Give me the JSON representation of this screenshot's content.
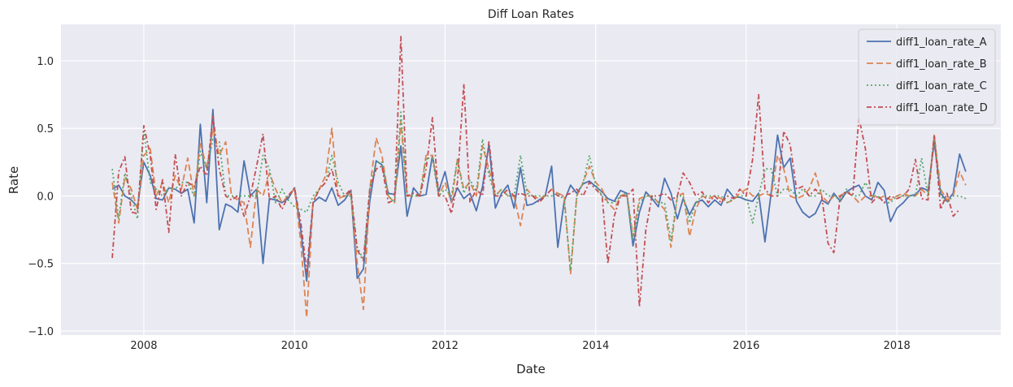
{
  "chart_data": {
    "type": "line",
    "title": "Diff Loan Rates",
    "xlabel": "Date",
    "ylabel": "Rate",
    "x_type": "date",
    "x_start": "2007-08",
    "x_step": "month",
    "xlim": [
      "2006-11-25",
      "2019-05-20"
    ],
    "ylim": [
      -1.03,
      1.27
    ],
    "x_ticks": [
      "2008",
      "2010",
      "2012",
      "2014",
      "2016",
      "2018"
    ],
    "x_tick_dates": [
      "2008-01-01",
      "2010-01-01",
      "2012-01-01",
      "2014-01-01",
      "2016-01-01",
      "2018-01-01"
    ],
    "y_ticks": [
      -1.0,
      -0.5,
      0.0,
      0.5,
      1.0
    ],
    "y_tick_labels": [
      "−1.0",
      "−0.5",
      "0.0",
      "0.5",
      "1.0"
    ],
    "grid": true,
    "legend_position": "top-right",
    "series": [
      {
        "name": "diff1_loan_rate_A",
        "color": "#4c72b0",
        "dash": "solid",
        "values": [
          0.05,
          0.08,
          0.0,
          -0.03,
          -0.08,
          0.25,
          0.15,
          -0.02,
          -0.03,
          0.06,
          0.05,
          0.02,
          0.05,
          -0.2,
          0.53,
          -0.05,
          0.64,
          -0.25,
          -0.06,
          -0.08,
          -0.12,
          0.26,
          0.0,
          0.05,
          -0.5,
          -0.02,
          -0.03,
          -0.05,
          -0.02,
          0.06,
          -0.26,
          -0.63,
          -0.05,
          -0.01,
          -0.04,
          0.06,
          -0.07,
          -0.03,
          0.04,
          -0.61,
          -0.54,
          -0.04,
          0.26,
          0.23,
          0.02,
          0.01,
          0.37,
          -0.15,
          0.06,
          0.0,
          0.01,
          0.3,
          0.03,
          0.18,
          -0.05,
          0.06,
          -0.02,
          0.02,
          -0.11,
          0.07,
          0.38,
          -0.09,
          0.02,
          0.08,
          -0.09,
          0.21,
          -0.07,
          -0.06,
          -0.03,
          0.0,
          0.22,
          -0.38,
          -0.04,
          0.08,
          0.02,
          0.09,
          0.11,
          0.07,
          0.03,
          -0.02,
          -0.04,
          0.04,
          0.02,
          -0.37,
          -0.12,
          0.03,
          -0.02,
          -0.08,
          0.13,
          0.02,
          -0.17,
          -0.02,
          -0.14,
          -0.05,
          -0.03,
          -0.08,
          -0.03,
          -0.07,
          0.05,
          -0.01,
          -0.01,
          -0.03,
          -0.04,
          0.02,
          -0.34,
          0.02,
          0.45,
          0.21,
          0.28,
          -0.04,
          -0.12,
          -0.16,
          -0.13,
          -0.03,
          -0.06,
          0.02,
          -0.04,
          0.03,
          0.06,
          0.08,
          0.0,
          -0.03,
          0.1,
          0.04,
          -0.19,
          -0.09,
          -0.05,
          0.0,
          0.01,
          0.06,
          0.04,
          0.4,
          0.02,
          -0.04,
          0.02,
          0.31,
          0.18
        ]
      },
      {
        "name": "diff1_loan_rate_B",
        "color": "#dd8452",
        "dash": "8,4",
        "values": [
          0.1,
          -0.2,
          0.14,
          0.05,
          -0.1,
          0.3,
          0.35,
          0.0,
          0.1,
          -0.05,
          0.15,
          0.05,
          0.28,
          0.0,
          0.4,
          0.2,
          0.5,
          0.3,
          0.4,
          0.0,
          -0.03,
          -0.05,
          -0.38,
          0.05,
          0.0,
          0.17,
          0.05,
          -0.05,
          0.0,
          0.05,
          -0.35,
          -0.9,
          -0.04,
          0.05,
          0.15,
          0.5,
          -0.02,
          0.0,
          0.02,
          -0.5,
          -0.84,
          0.05,
          0.43,
          0.3,
          0.0,
          -0.05,
          0.55,
          0.0,
          0.0,
          0.0,
          0.3,
          0.3,
          0.0,
          0.1,
          -0.05,
          0.27,
          0.05,
          0.1,
          0.0,
          0.37,
          0.2,
          0.0,
          0.05,
          0.0,
          0.0,
          -0.22,
          0.05,
          0.0,
          -0.02,
          0.0,
          0.05,
          0.02,
          0.0,
          -0.58,
          0.0,
          0.1,
          0.22,
          0.1,
          0.05,
          -0.05,
          -0.1,
          0.0,
          0.02,
          -0.3,
          -0.02,
          0.0,
          0.0,
          -0.05,
          -0.1,
          -0.38,
          0.0,
          0.02,
          -0.3,
          -0.1,
          0.0,
          -0.02,
          0.0,
          -0.02,
          -0.05,
          -0.03,
          0.02,
          0.05,
          0.0,
          0.0,
          0.02,
          0.0,
          0.3,
          0.2,
          0.0,
          -0.02,
          0.0,
          0.05,
          0.17,
          0.0,
          -0.05,
          0.0,
          0.0,
          0.03,
          0.0,
          -0.05,
          0.0,
          0.0,
          -0.02,
          0.0,
          -0.03,
          0.0,
          0.02,
          0.0,
          0.0,
          0.05,
          0.0,
          0.45,
          0.05,
          -0.03,
          0.0,
          0.18,
          0.08
        ]
      },
      {
        "name": "diff1_loan_rate_C",
        "color": "#55a868",
        "dash": "2,3",
        "values": [
          0.2,
          -0.17,
          0.17,
          0.0,
          -0.17,
          0.48,
          0.1,
          0.05,
          0.0,
          0.06,
          0.05,
          0.1,
          0.1,
          0.0,
          0.33,
          0.2,
          0.42,
          0.4,
          0.0,
          0.0,
          0.0,
          0.0,
          0.0,
          0.0,
          0.3,
          0.2,
          -0.05,
          0.05,
          -0.03,
          -0.08,
          -0.1,
          -0.12,
          0.0,
          0.05,
          0.1,
          0.3,
          0.1,
          0.0,
          0.0,
          -0.38,
          -0.47,
          0.05,
          0.25,
          0.25,
          0.0,
          -0.05,
          0.62,
          0.0,
          0.0,
          0.0,
          0.28,
          0.28,
          0.0,
          0.05,
          0.0,
          0.27,
          0.02,
          0.12,
          0.03,
          0.42,
          0.15,
          0.0,
          0.05,
          0.0,
          0.0,
          0.3,
          0.02,
          0.0,
          0.0,
          0.0,
          0.0,
          0.02,
          -0.03,
          -0.55,
          0.0,
          0.1,
          0.3,
          0.08,
          0.0,
          -0.05,
          -0.05,
          0.0,
          0.02,
          -0.32,
          -0.05,
          0.0,
          0.0,
          -0.05,
          -0.05,
          -0.33,
          0.0,
          0.0,
          -0.2,
          -0.05,
          0.0,
          0.0,
          0.0,
          0.0,
          -0.05,
          -0.02,
          0.0,
          0.0,
          -0.2,
          0.0,
          0.2,
          0.2,
          0.0,
          0.05,
          0.05,
          0.0,
          0.05,
          0.0,
          0.0,
          0.05,
          0.0,
          0.0,
          -0.03,
          0.05,
          0.0,
          0.0,
          0.1,
          0.0,
          0.0,
          -0.05,
          -0.05,
          0.0,
          0.0,
          0.0,
          0.0,
          0.28,
          0.0,
          0.45,
          0.0,
          -0.05,
          0.0,
          0.0,
          -0.02
        ]
      },
      {
        "name": "diff1_loan_rate_D",
        "color": "#c44e52",
        "dash": "6,3,2,3",
        "values": [
          -0.46,
          0.18,
          0.29,
          -0.12,
          -0.13,
          0.52,
          0.3,
          -0.1,
          0.12,
          -0.27,
          0.31,
          0.0,
          0.1,
          0.07,
          0.22,
          0.15,
          0.6,
          0.2,
          0.0,
          -0.03,
          0.0,
          -0.15,
          0.0,
          0.22,
          0.46,
          -0.03,
          0.0,
          -0.1,
          0.0,
          0.06,
          -0.2,
          -0.56,
          -0.05,
          0.05,
          0.1,
          0.2,
          0.0,
          0.0,
          0.05,
          -0.4,
          -0.48,
          0.05,
          0.2,
          0.22,
          -0.05,
          -0.03,
          1.18,
          0.0,
          0.02,
          0.0,
          0.2,
          0.58,
          0.0,
          0.0,
          -0.13,
          0.1,
          0.83,
          -0.05,
          0.05,
          0.0,
          0.4,
          0.0,
          0.0,
          0.05,
          0.0,
          0.02,
          0.0,
          0.0,
          -0.05,
          0.0,
          0.05,
          0.0,
          0.0,
          0.02,
          0.05,
          0.0,
          0.1,
          0.05,
          0.0,
          -0.5,
          -0.15,
          0.0,
          0.0,
          0.05,
          -0.82,
          -0.25,
          0.0,
          0.0,
          0.02,
          -0.03,
          0.0,
          0.17,
          0.1,
          0.0,
          0.03,
          -0.05,
          0.0,
          -0.05,
          0.0,
          -0.02,
          0.05,
          0.0,
          0.27,
          0.75,
          0.05,
          0.0,
          0.0,
          0.48,
          0.38,
          0.05,
          0.07,
          0.0,
          0.05,
          0.0,
          -0.35,
          -0.42,
          0.0,
          0.03,
          0.0,
          0.58,
          0.35,
          -0.05,
          0.0,
          -0.05,
          0.0,
          -0.02,
          0.0,
          0.05,
          0.27,
          -0.02,
          -0.03,
          0.45,
          -0.1,
          0.02,
          -0.15,
          -0.1
        ]
      }
    ]
  }
}
